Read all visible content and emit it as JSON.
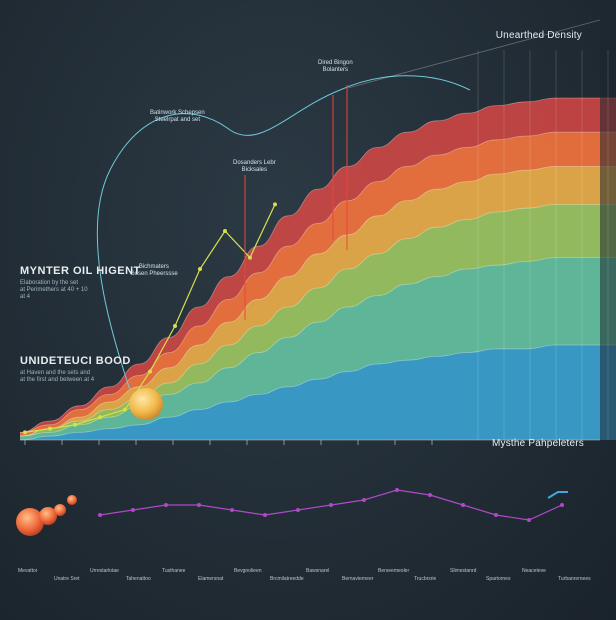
{
  "chart_data": {
    "type": "area",
    "title": "Unearthed Density",
    "legend_title": "Mysthe Pahpeleters",
    "left_labels": [
      {
        "heading": "MYNTER OIL HIGENT",
        "lines": [
          "Elaboration by the set",
          "at Perimethers at 40 + 10",
          "at 4"
        ]
      },
      {
        "heading": "UNIDETEUCI BOOD",
        "lines": [
          "at Haven and the sets and",
          "at the first and between at 4"
        ]
      }
    ],
    "callouts": [
      {
        "label": "Dired Bingon",
        "sub": "Bolanters"
      },
      {
        "label": "Batinwork Schepsen",
        "sub": "Steelrpat and set"
      },
      {
        "label": "Dosanders Lebr",
        "sub": "Bicksales"
      },
      {
        "label": "Bichmaters",
        "sub": "Gosen Pheerssse"
      }
    ],
    "x": [
      0,
      1,
      2,
      3,
      4,
      5,
      6,
      7,
      8,
      9,
      10,
      11,
      12,
      13,
      14,
      15,
      16,
      17,
      18,
      19,
      20
    ],
    "series": [
      {
        "name": "Red",
        "color": "#e84a45",
        "values": [
          2,
          5,
          9,
          14,
          20,
          27,
          35,
          43,
          51,
          59,
          66,
          72,
          77,
          81,
          84,
          86,
          88,
          89,
          90,
          90,
          90
        ]
      },
      {
        "name": "Orange",
        "color": "#ec7a3c",
        "values": [
          2,
          4,
          8,
          12,
          17,
          23,
          30,
          37,
          44,
          51,
          57,
          63,
          68,
          72,
          75,
          77,
          79,
          80,
          81,
          81,
          81
        ]
      },
      {
        "name": "Yellow",
        "color": "#d9b24a",
        "values": [
          1,
          3,
          6,
          10,
          14,
          19,
          25,
          31,
          37,
          43,
          49,
          54,
          59,
          63,
          66,
          68,
          70,
          71,
          72,
          72,
          72
        ]
      },
      {
        "name": "Green",
        "color": "#7fbf66",
        "values": [
          1,
          3,
          5,
          8,
          11,
          15,
          20,
          25,
          30,
          35,
          40,
          45,
          49,
          53,
          56,
          58,
          60,
          61,
          62,
          62,
          62
        ]
      },
      {
        "name": "Teal",
        "color": "#4fb3a8",
        "values": [
          1,
          2,
          4,
          6,
          9,
          12,
          15,
          19,
          23,
          27,
          31,
          35,
          38,
          41,
          43,
          45,
          46,
          47,
          48,
          48,
          48
        ]
      },
      {
        "name": "Blue",
        "color": "#2f8fd0",
        "values": [
          0,
          1,
          2,
          3,
          4,
          6,
          8,
          10,
          12,
          14,
          16,
          18,
          20,
          21,
          22,
          23,
          24,
          24,
          25,
          25,
          25
        ]
      }
    ],
    "trend_line": {
      "color": "#d6e04a",
      "values": [
        2,
        3,
        4,
        6,
        8,
        18,
        30,
        45,
        55,
        48,
        62
      ]
    },
    "bottom_wave": {
      "color": "#b049c8",
      "values": [
        3,
        4,
        5,
        5,
        4,
        3,
        4,
        5,
        6,
        8,
        7,
        5,
        3,
        2,
        5
      ]
    },
    "ylim": [
      0,
      100
    ],
    "footer_ticks": [
      "Mevattor",
      "Unatre Sret",
      "Urrestarlotae",
      "Tahenattoo",
      "Tusthanee",
      "Elamersnat",
      "Bevgnolieen",
      "Brcmilatreedde",
      "Bawsnarel",
      "Bernavierneer",
      "Berseemeoler",
      "Trucbrsrie",
      "Slimestanrd",
      "Spartornes",
      "Neaceteve",
      "Turbanrernees"
    ]
  }
}
